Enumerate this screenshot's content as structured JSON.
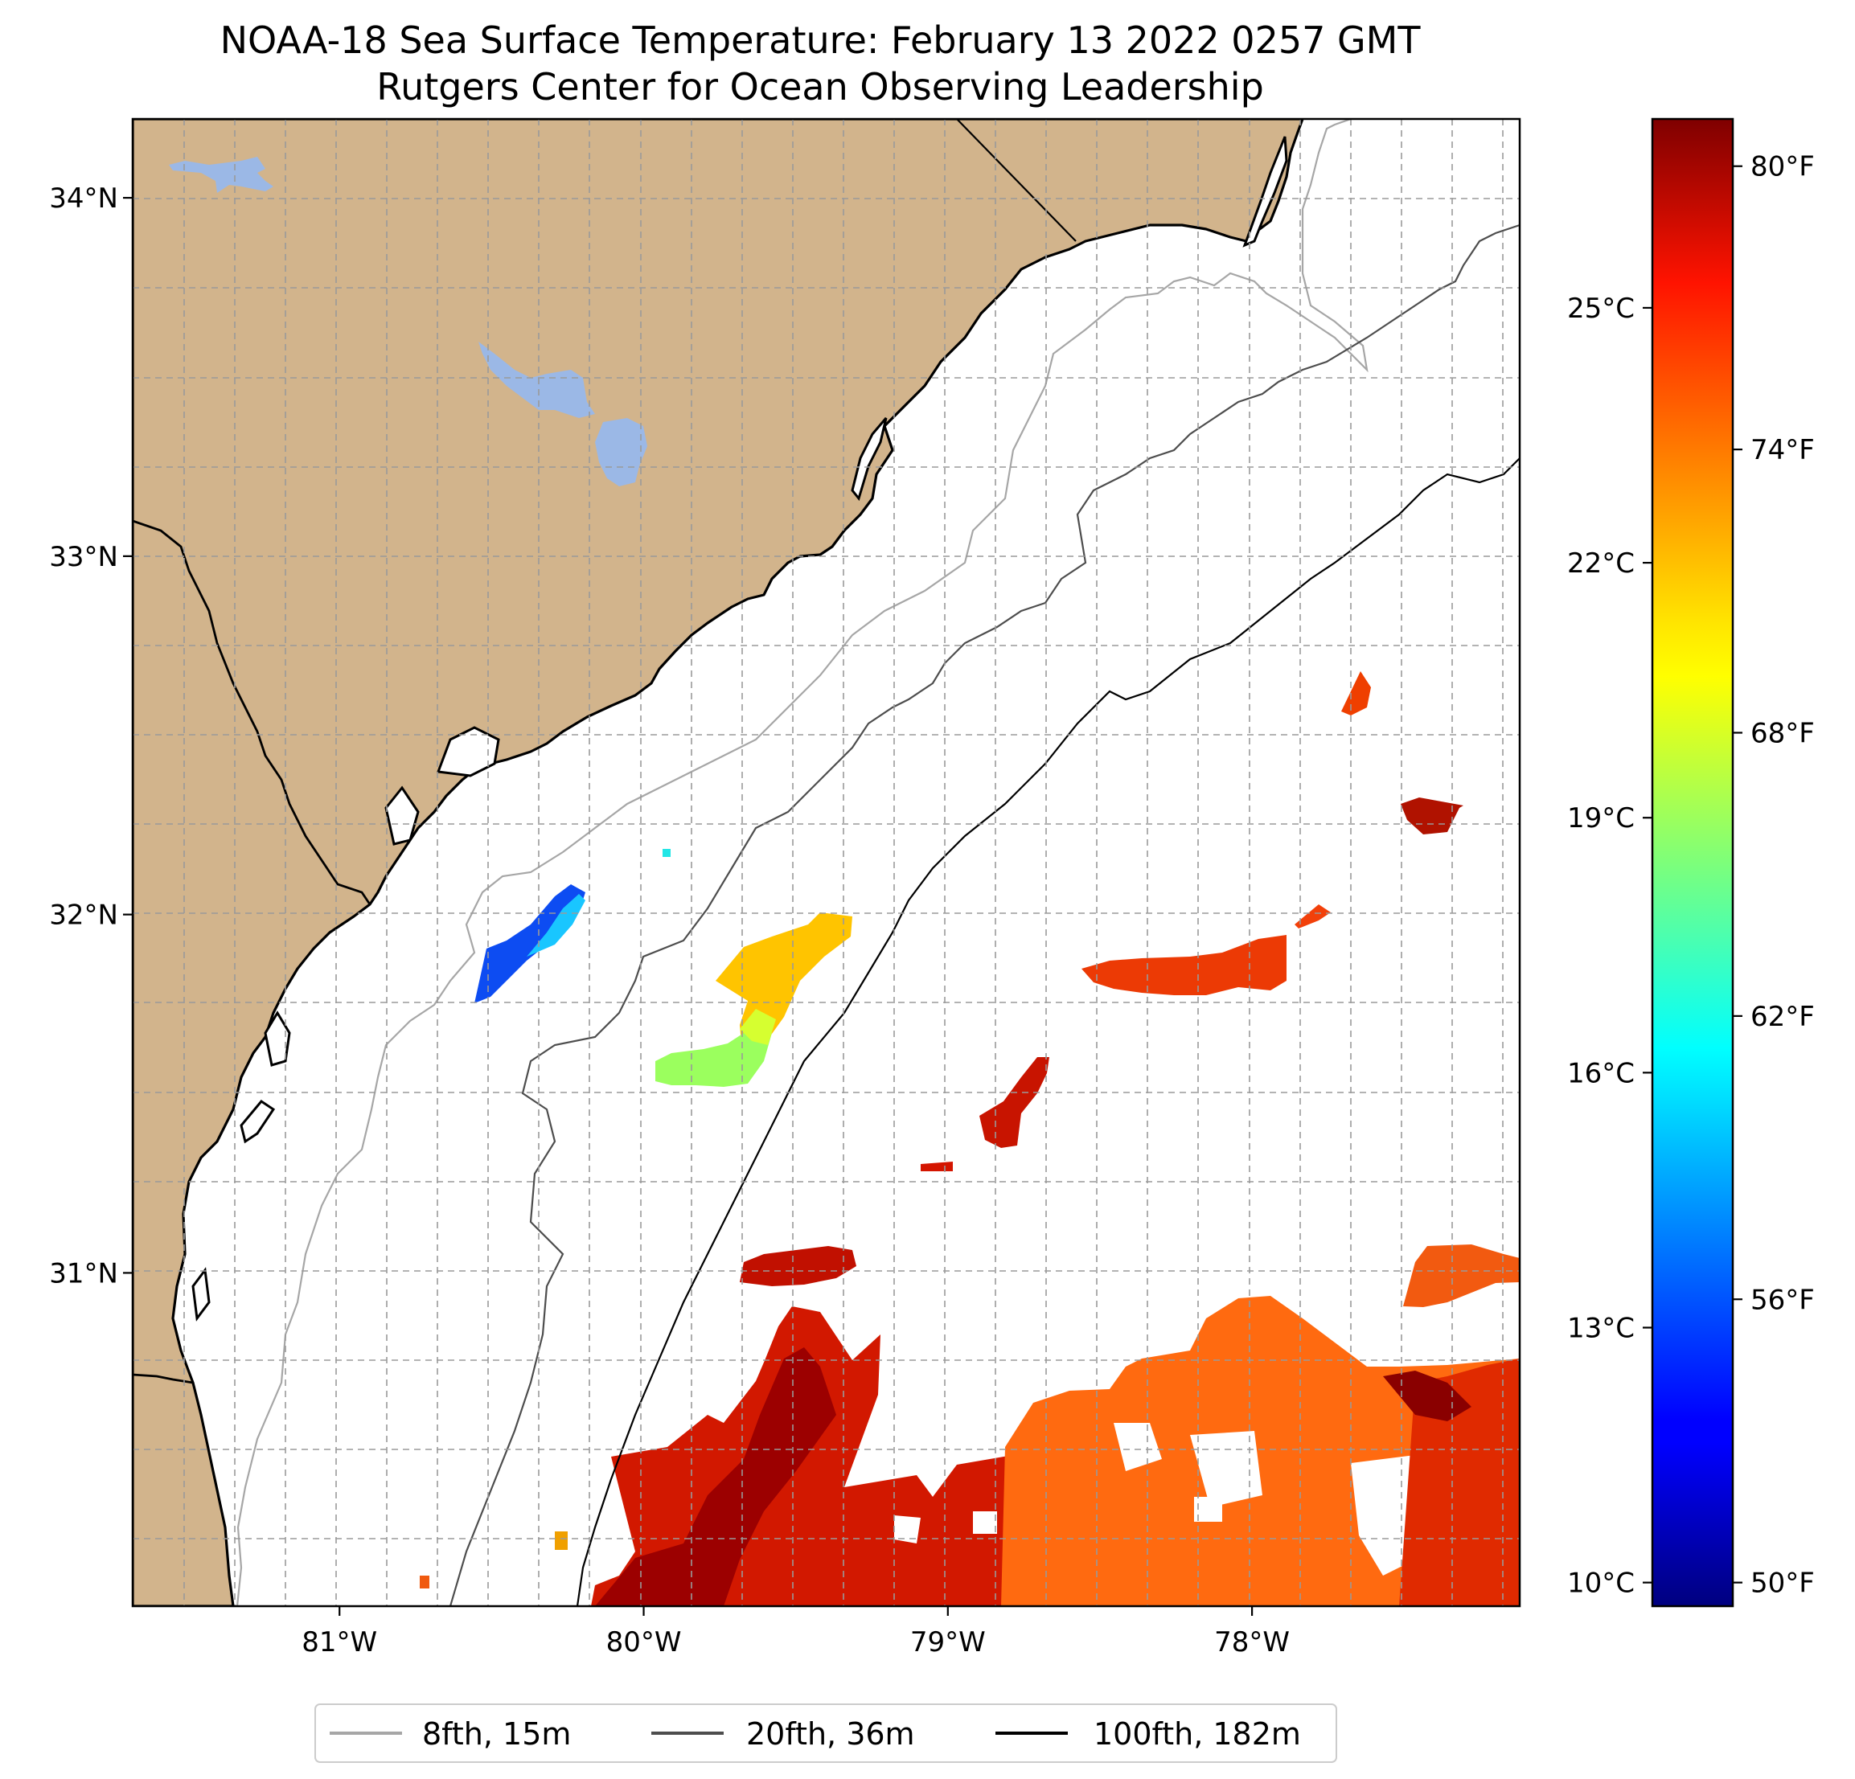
{
  "title": {
    "line1": "NOAA-18 Sea Surface Temperature: February 13 2022 0257 GMT",
    "line2": "Rutgers Center for Ocean Observing Leadership"
  },
  "colors": {
    "land": "#d2b48c",
    "lake": "#9bb8e6",
    "coast": "#000000",
    "iso8": "#a6a6a6",
    "iso20": "#4d4d4d",
    "iso100": "#000000"
  },
  "map": {
    "lon_range": [
      -81.68,
      -77.12
    ],
    "lat_range": [
      30.07,
      34.22
    ],
    "lon_ticks": [
      {
        "value": -81,
        "label": "81°W"
      },
      {
        "value": -80,
        "label": "80°W"
      },
      {
        "value": -79,
        "label": "79°W"
      },
      {
        "value": -78,
        "label": "78°W"
      }
    ],
    "lat_ticks": [
      {
        "value": 34,
        "label": "34°N"
      },
      {
        "value": 33,
        "label": "33°N"
      },
      {
        "value": 32,
        "label": "32°N"
      },
      {
        "value": 31,
        "label": "31°N"
      }
    ]
  },
  "colorbar": {
    "colormap": "jet",
    "celsius_ticks": [
      {
        "value": 25,
        "label": "25°C"
      },
      {
        "value": 22,
        "label": "22°C"
      },
      {
        "value": 19,
        "label": "19°C"
      },
      {
        "value": 16,
        "label": "16°C"
      },
      {
        "value": 13,
        "label": "13°C"
      },
      {
        "value": 10,
        "label": "10°C"
      }
    ],
    "fahrenheit_ticks": [
      {
        "value": 80,
        "label": "80°F"
      },
      {
        "value": 74,
        "label": "74°F"
      },
      {
        "value": 68,
        "label": "68°F"
      },
      {
        "value": 62,
        "label": "62°F"
      },
      {
        "value": 56,
        "label": "56°F"
      },
      {
        "value": 50,
        "label": "50°F"
      }
    ]
  },
  "legend": {
    "placement": "bottom-center",
    "items": [
      {
        "label": "8fth, 15m",
        "color": "#a6a6a6"
      },
      {
        "label": "20fth, 36m",
        "color": "#4d4d4d"
      },
      {
        "label": "100fth, 182m",
        "color": "#000000"
      }
    ]
  }
}
